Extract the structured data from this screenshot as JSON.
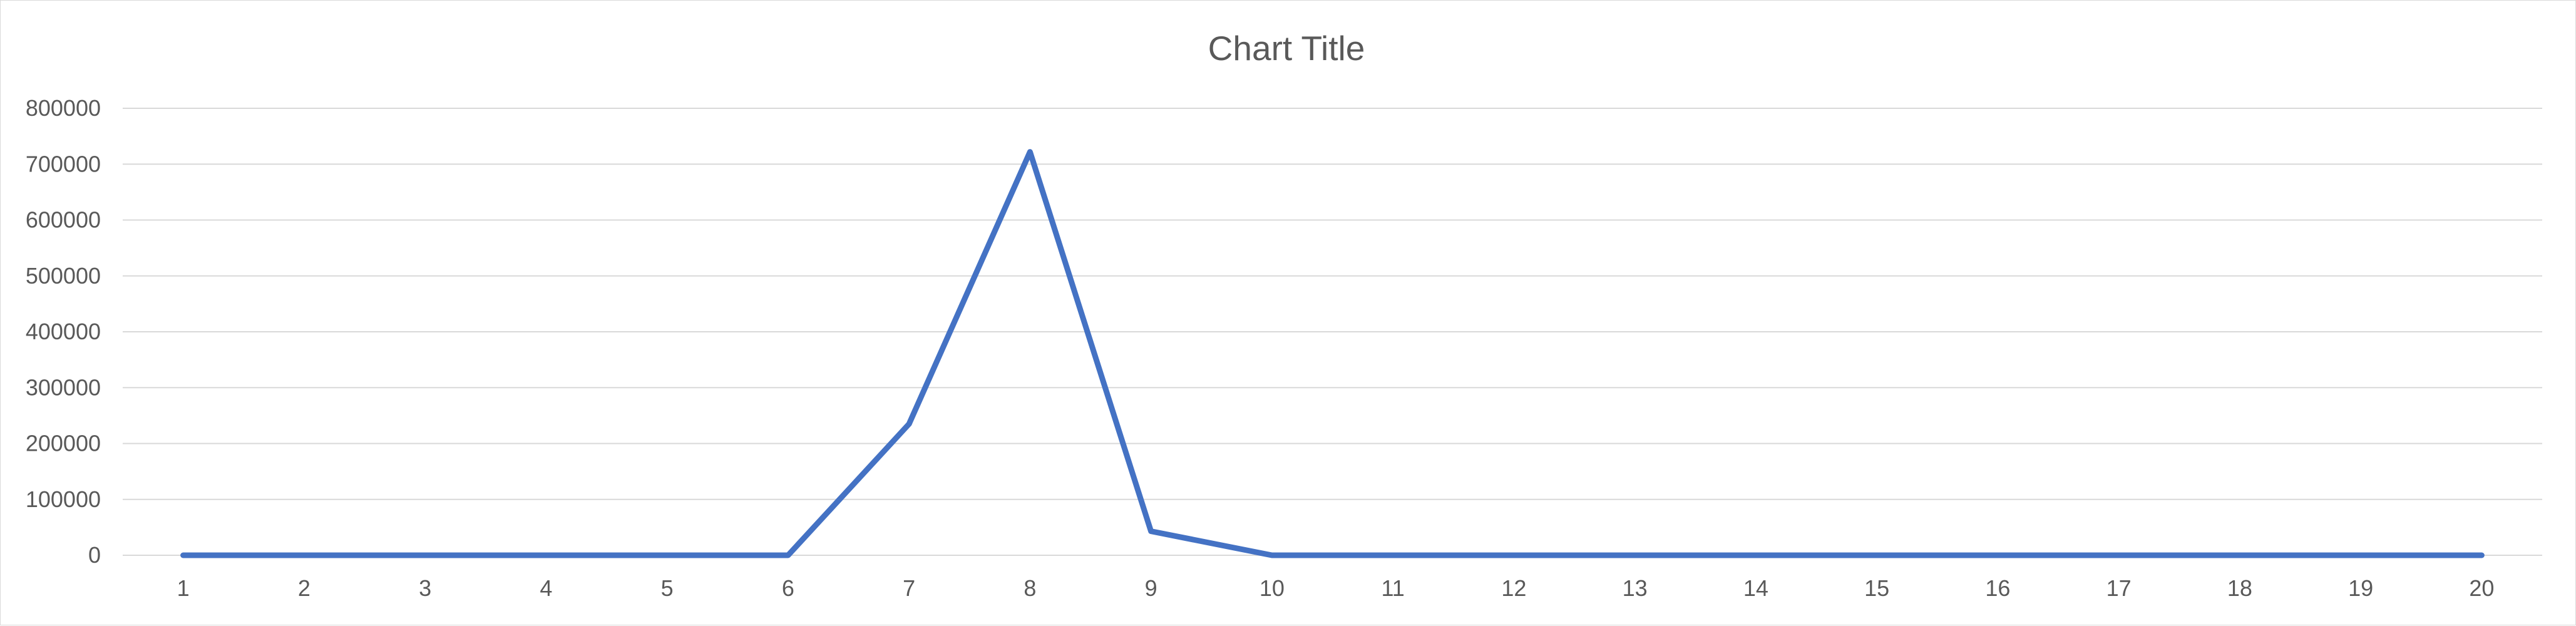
{
  "chart_data": {
    "type": "line",
    "title": "Chart Title",
    "xlabel": "",
    "ylabel": "",
    "categories": [
      "1",
      "2",
      "3",
      "4",
      "5",
      "6",
      "7",
      "8",
      "9",
      "10",
      "11",
      "12",
      "13",
      "14",
      "15",
      "16",
      "17",
      "18",
      "19",
      "20"
    ],
    "y_ticks": [
      "0",
      "100000",
      "200000",
      "300000",
      "400000",
      "500000",
      "600000",
      "700000",
      "800000"
    ],
    "ylim": [
      0,
      800000
    ],
    "grid": true,
    "legend": "none",
    "series": [
      {
        "color": "#4472c4",
        "values": [
          0,
          0,
          0,
          0,
          0,
          0,
          235000,
          722000,
          43000,
          0,
          0,
          0,
          0,
          0,
          0,
          0,
          0,
          0,
          0,
          0
        ]
      }
    ]
  }
}
